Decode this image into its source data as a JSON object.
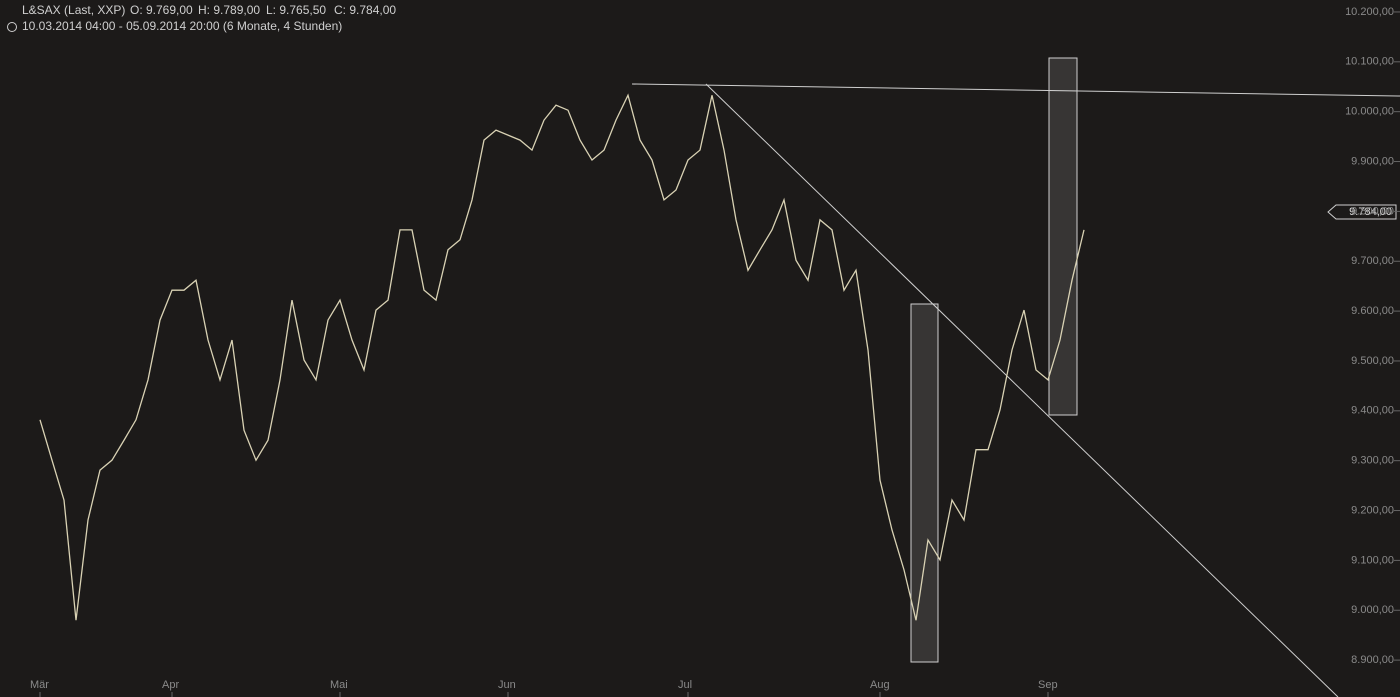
{
  "chart_data": {
    "type": "line",
    "title": "L&SAX (Last, XXP)",
    "ohlc": [
      "O: 9.769,00",
      "H: 9.789,00",
      "L: 9.765,50",
      "C: 9.784,00"
    ],
    "subtitle": "10.03.2014 04:00 - 05.09.2014 20:00 (6 Monate, 4 Stunden)",
    "price_tag": "9.784,00",
    "color": "#d9d2b4",
    "categories": [
      "Mär",
      null,
      null,
      null,
      null,
      null,
      null,
      null,
      null,
      null,
      null,
      "Apr",
      null,
      null,
      null,
      null,
      null,
      null,
      null,
      null,
      null,
      null,
      null,
      null,
      null,
      "Mai",
      null,
      null,
      null,
      null,
      null,
      null,
      null,
      null,
      null,
      null,
      null,
      null,
      null,
      "Jun",
      null,
      null,
      null,
      null,
      null,
      null,
      null,
      null,
      null,
      null,
      null,
      null,
      null,
      null,
      "Jul",
      null,
      null,
      null,
      null,
      null,
      null,
      null,
      null,
      null,
      null,
      null,
      null,
      null,
      null,
      null,
      "Aug",
      null,
      null,
      null,
      null,
      null,
      null,
      null,
      null,
      null,
      null,
      null,
      null,
      null,
      "Sep",
      null,
      null,
      null
    ],
    "values": [
      9382,
      9301,
      9221,
      8980,
      9181,
      9281,
      9301,
      9341,
      9382,
      9462,
      9582,
      9642,
      9642,
      9662,
      9542,
      9462,
      9542,
      9361,
      9301,
      9341,
      9462,
      9622,
      9502,
      9462,
      9582,
      9622,
      9542,
      9482,
      9602,
      9622,
      9763,
      9763,
      9642,
      9622,
      9723,
      9743,
      9823,
      9943,
      9963,
      9953,
      9943,
      9923,
      9983,
      10013,
      10003,
      9943,
      9903,
      9923,
      9983,
      10033,
      9943,
      9903,
      9823,
      9843,
      9903,
      9923,
      10033,
      9923,
      9783,
      9682,
      9723,
      9763,
      9823,
      9702,
      9662,
      9783,
      9763,
      9642,
      9682,
      9522,
      9261,
      9161,
      9081,
      8980,
      9141,
      9101,
      9221,
      9181,
      9322,
      9322,
      9402,
      9522,
      9602,
      9482,
      9462,
      9542,
      9662,
      9763
    ],
    "ylim": [
      8826,
      10224
    ],
    "yticks": [
      {
        "value": 8900,
        "label": "8.900,00"
      },
      {
        "value": 9000,
        "label": "9.000,00"
      },
      {
        "value": 9100,
        "label": "9.100,00"
      },
      {
        "value": 9200,
        "label": "9.200,00"
      },
      {
        "value": 9300,
        "label": "9.300,00"
      },
      {
        "value": 9400,
        "label": "9.400,00"
      },
      {
        "value": 9500,
        "label": "9.500,00"
      },
      {
        "value": 9600,
        "label": "9.600,00"
      },
      {
        "value": 9700,
        "label": "9.700,00"
      },
      {
        "value": 9800,
        "label": "9.800,00"
      },
      {
        "value": 9900,
        "label": "9.900,00"
      },
      {
        "value": 10000,
        "label": "10.000,00"
      },
      {
        "value": 10100,
        "label": "10.100,00"
      },
      {
        "value": 10200,
        "label": "10.200,00"
      }
    ]
  }
}
